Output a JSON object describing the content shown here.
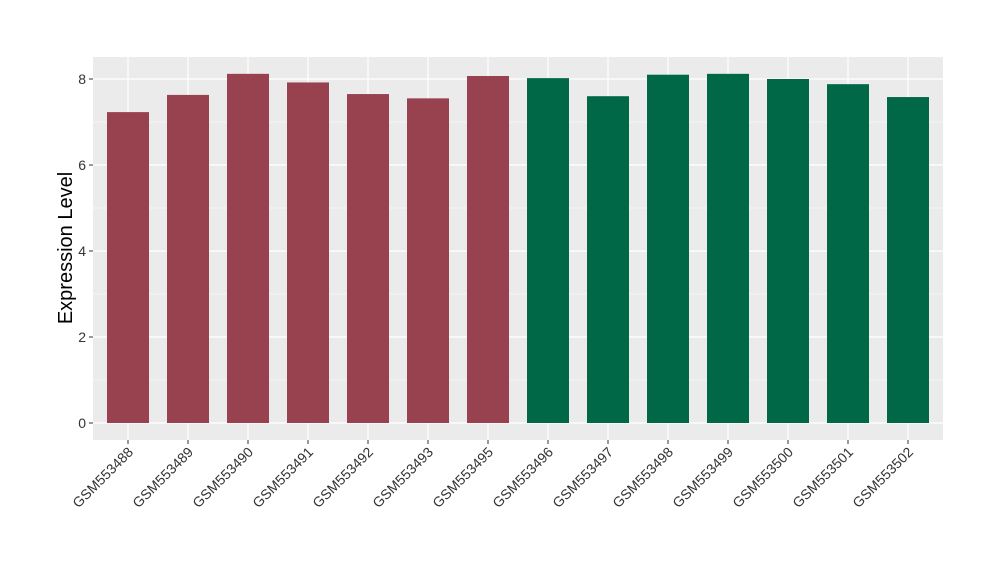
{
  "chart_data": {
    "type": "bar",
    "title": "",
    "xlabel": "",
    "ylabel": "Expression Level",
    "ylim": [
      0,
      8.5
    ],
    "yticks": [
      0,
      2,
      4,
      6,
      8
    ],
    "grid": true,
    "legend": "none",
    "categories": [
      "GSM553488",
      "GSM553489",
      "GSM553490",
      "GSM553491",
      "GSM553492",
      "GSM553493",
      "GSM553495",
      "GSM553496",
      "GSM553497",
      "GSM553498",
      "GSM553499",
      "GSM553500",
      "GSM553501",
      "GSM553502"
    ],
    "values": [
      7.23,
      7.63,
      8.12,
      7.92,
      7.65,
      7.55,
      8.07,
      8.02,
      7.6,
      8.1,
      8.12,
      8.0,
      7.88,
      7.58
    ],
    "groups": [
      "a",
      "a",
      "a",
      "a",
      "a",
      "a",
      "a",
      "b",
      "b",
      "b",
      "b",
      "b",
      "b",
      "b"
    ],
    "group_colors": {
      "a": "#99424f",
      "b": "#006846"
    },
    "panel_background": "#ebebeb",
    "grid_color": "#ffffff"
  }
}
